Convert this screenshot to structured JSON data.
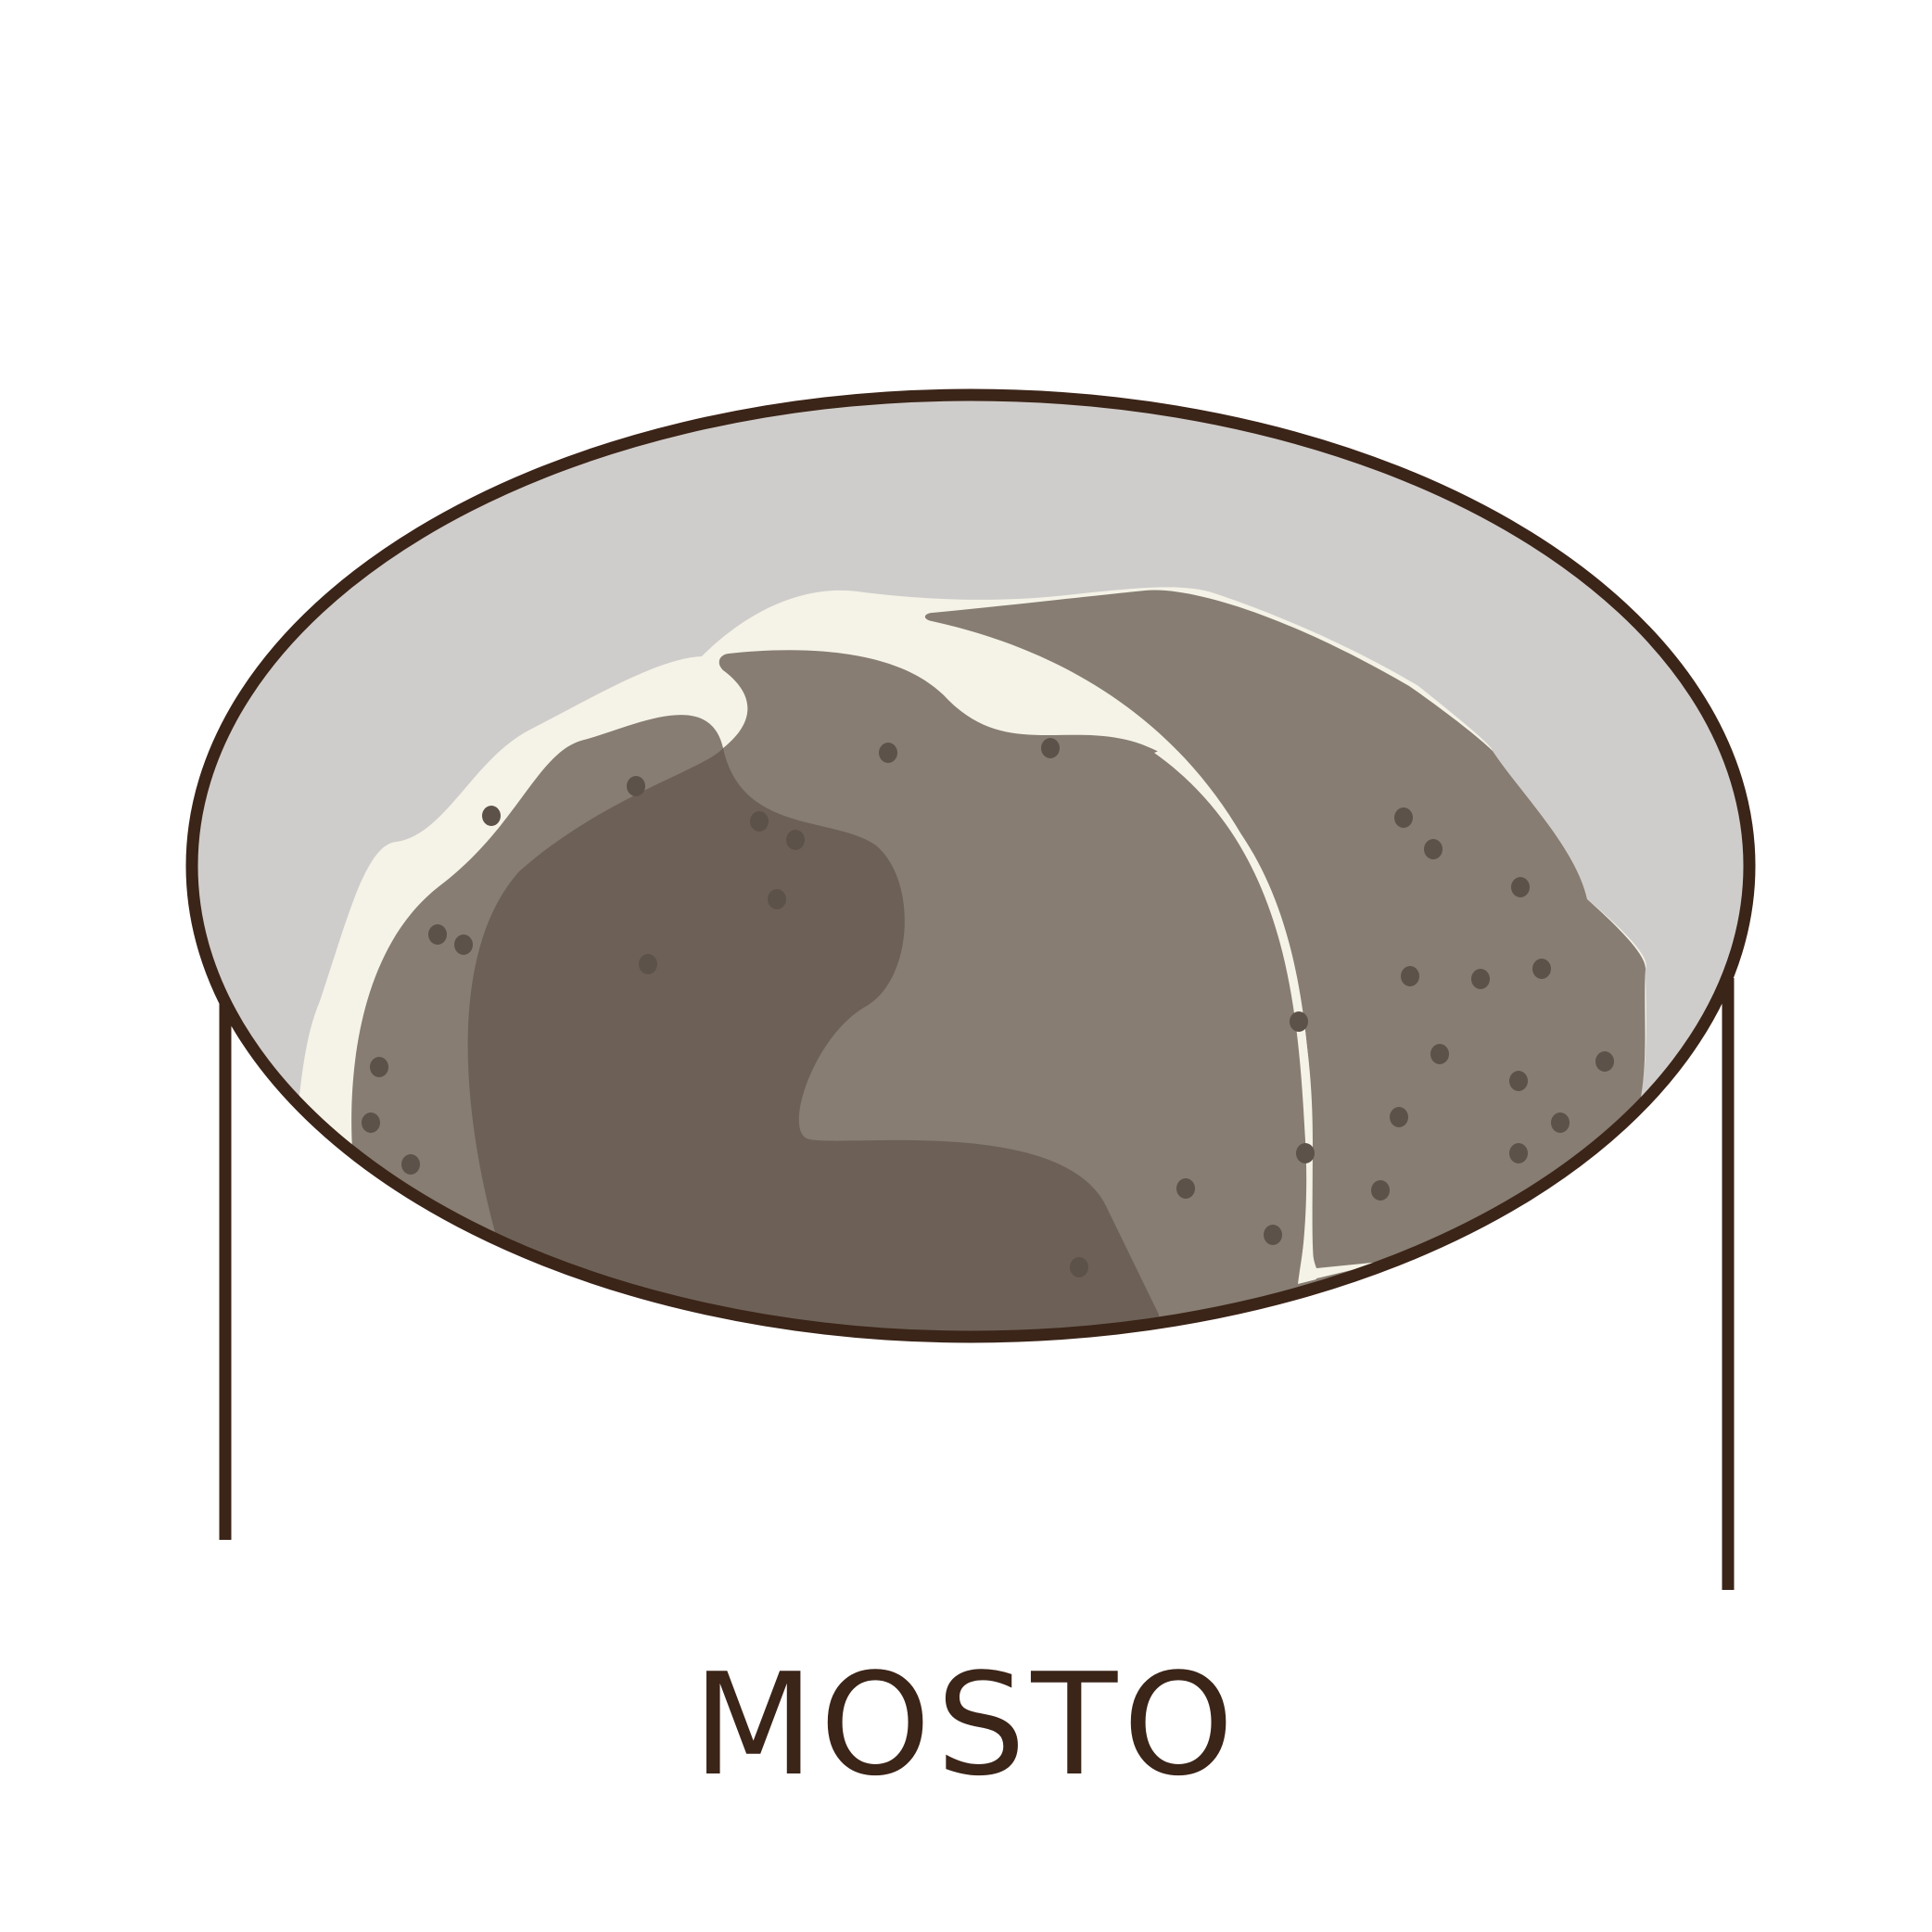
{
  "caption": "MOSTO",
  "colors": {
    "outline": "#3b2418",
    "basin": "#cfcdcb",
    "cream": "#f5f3e7",
    "must_light": "#877d72",
    "must_dark": "#6d6157",
    "seeds": "#5d5249",
    "background": "#ffffff"
  },
  "icons": {
    "illustration": "wine-must-tub-icon"
  }
}
